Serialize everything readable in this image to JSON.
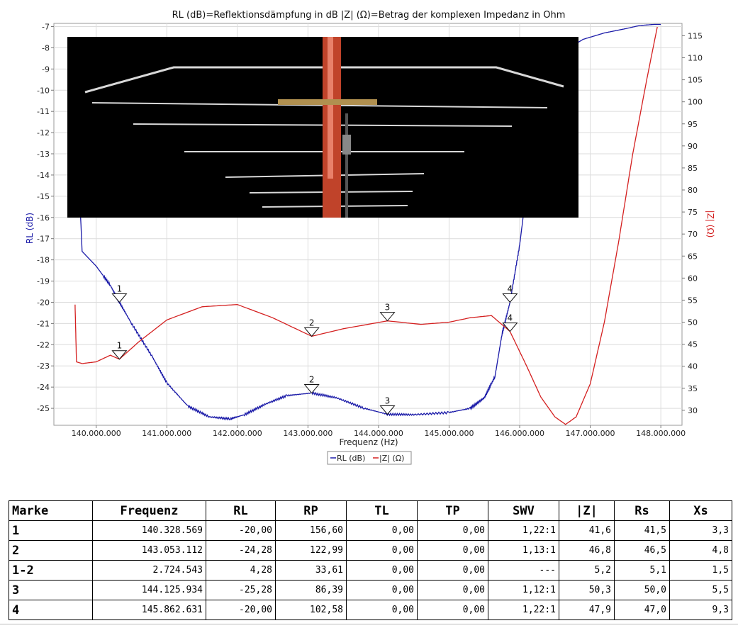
{
  "chart_data": {
    "type": "line",
    "title": "RL (dB)=Reflektionsdämpfung in dB    |Z| (Ω)=Betrag der komplexen Impedanz in Ohm",
    "xlabel": "Frequenz (Hz)",
    "ylabel_left": "RL (dB)",
    "ylabel_right": "|Z| (Ω)",
    "xlim": [
      139400000,
      148300000
    ],
    "ylim_left": [
      -25.8,
      -6.85
    ],
    "ylim_right": [
      26.6,
      117.8
    ],
    "x_ticks": [
      140000000,
      141000000,
      142000000,
      143000000,
      144000000,
      145000000,
      146000000,
      147000000,
      148000000
    ],
    "x_tick_labels": [
      "140.000.000",
      "141.000.000",
      "142.000.000",
      "143.000.000",
      "144.000.000",
      "145.000.000",
      "146.000.000",
      "147.000.000",
      "148.000.000"
    ],
    "y_left_ticks": [
      -7,
      -8,
      -9,
      -10,
      -11,
      -12,
      -13,
      -14,
      -15,
      -16,
      -17,
      -18,
      -19,
      -20,
      -21,
      -22,
      -23,
      -24,
      -25
    ],
    "y_right_ticks": [
      115,
      110,
      105,
      100,
      95,
      90,
      85,
      80,
      75,
      70,
      65,
      60,
      55,
      50,
      45,
      40,
      35,
      30
    ],
    "grid": true,
    "legend_position": "bottom-center",
    "legend": [
      "RL (dB)",
      "|Z| (Ω)"
    ],
    "series": [
      {
        "name": "RL (dB)",
        "axis": "left",
        "color": "#1a1aa8",
        "x": [
          139700000,
          139800000,
          140000000,
          140200000,
          140328569,
          140500000,
          140800000,
          141000000,
          141300000,
          141600000,
          141900000,
          142100000,
          142400000,
          142700000,
          143053112,
          143400000,
          143800000,
          144125934,
          144500000,
          145000000,
          145300000,
          145500000,
          145650000,
          145750000,
          145862631,
          146000000,
          146100000,
          146200000,
          146300000,
          146500000,
          146700000,
          146900000,
          147200000,
          147500000,
          147700000,
          147900000,
          148000000
        ],
        "y": [
          -10.0,
          -17.6,
          -18.3,
          -19.2,
          -20.0,
          -21.0,
          -22.6,
          -23.8,
          -24.9,
          -25.4,
          -25.5,
          -25.3,
          -24.8,
          -24.4,
          -24.28,
          -24.5,
          -25.0,
          -25.28,
          -25.3,
          -25.2,
          -25.0,
          -24.5,
          -23.5,
          -21.5,
          -20.0,
          -17.3,
          -14.6,
          -12.0,
          -10.0,
          -8.6,
          -8.0,
          -7.6,
          -7.3,
          -7.1,
          -6.95,
          -6.9,
          -6.9
        ]
      },
      {
        "name": "|Z| (Ω)",
        "axis": "right",
        "color": "#d42020",
        "x": [
          139700000,
          139720000,
          139800000,
          140000000,
          140200000,
          140328569,
          140600000,
          141000000,
          141500000,
          142000000,
          142500000,
          143053112,
          143500000,
          144125934,
          144600000,
          145000000,
          145300000,
          145600000,
          145862631,
          146100000,
          146300000,
          146500000,
          146650000,
          146800000,
          147000000,
          147200000,
          147400000,
          147600000,
          147800000,
          147950000
        ],
        "y": [
          54.0,
          41.0,
          40.6,
          41.0,
          42.5,
          41.6,
          45.5,
          50.5,
          53.5,
          54.0,
          51.0,
          46.8,
          48.5,
          50.3,
          49.5,
          50.0,
          51.0,
          51.5,
          47.9,
          40.0,
          33.0,
          28.5,
          26.8,
          28.5,
          36.0,
          50.0,
          68.0,
          88.0,
          105.0,
          117.0
        ]
      }
    ],
    "markers": [
      {
        "label": "1",
        "series": "RL (dB)",
        "x": 140328569,
        "y": -20.0
      },
      {
        "label": "2",
        "series": "RL (dB)",
        "x": 143053112,
        "y": -24.28
      },
      {
        "label": "3",
        "series": "RL (dB)",
        "x": 144125934,
        "y": -25.28
      },
      {
        "label": "4",
        "series": "RL (dB)",
        "x": 145862631,
        "y": -20.0
      },
      {
        "label": "1",
        "series": "|Z| (Ω)",
        "x": 140328569,
        "y": 41.6
      },
      {
        "label": "2",
        "series": "|Z| (Ω)",
        "x": 143053112,
        "y": 46.8
      },
      {
        "label": "3",
        "series": "|Z| (Ω)",
        "x": 144125934,
        "y": 50.3
      },
      {
        "label": "4",
        "series": "|Z| (Ω)",
        "x": 145862631,
        "y": 47.9
      }
    ]
  },
  "table": {
    "headers": [
      "Marke",
      "Frequenz",
      "RL",
      "RP",
      "TL",
      "TP",
      "SWV",
      "|Z|",
      "Rs",
      "Xs"
    ],
    "rows": [
      [
        "1",
        "140.328.569",
        "-20,00",
        "156,60",
        "0,00",
        "0,00",
        "1,22:1",
        "41,6",
        "41,5",
        "3,3"
      ],
      [
        "2",
        "143.053.112",
        "-24,28",
        "122,99",
        "0,00",
        "0,00",
        "1,13:1",
        "46,8",
        "46,5",
        "4,8"
      ],
      [
        "1-2",
        "2.724.543",
        "4,28",
        "33,61",
        "0,00",
        "0,00",
        "---",
        "5,2",
        "5,1",
        "1,5"
      ],
      [
        "3",
        "144.125.934",
        "-25,28",
        "86,39",
        "0,00",
        "0,00",
        "1,12:1",
        "50,3",
        "50,0",
        "5,5"
      ],
      [
        "4",
        "145.862.631",
        "-20,00",
        "102,58",
        "0,00",
        "0,00",
        "1,22:1",
        "47,9",
        "47,0",
        "9,3"
      ]
    ]
  },
  "photo": {
    "background_color": "#000000",
    "mast_color": "#c0432a",
    "element_color": "#d8d8d8"
  }
}
